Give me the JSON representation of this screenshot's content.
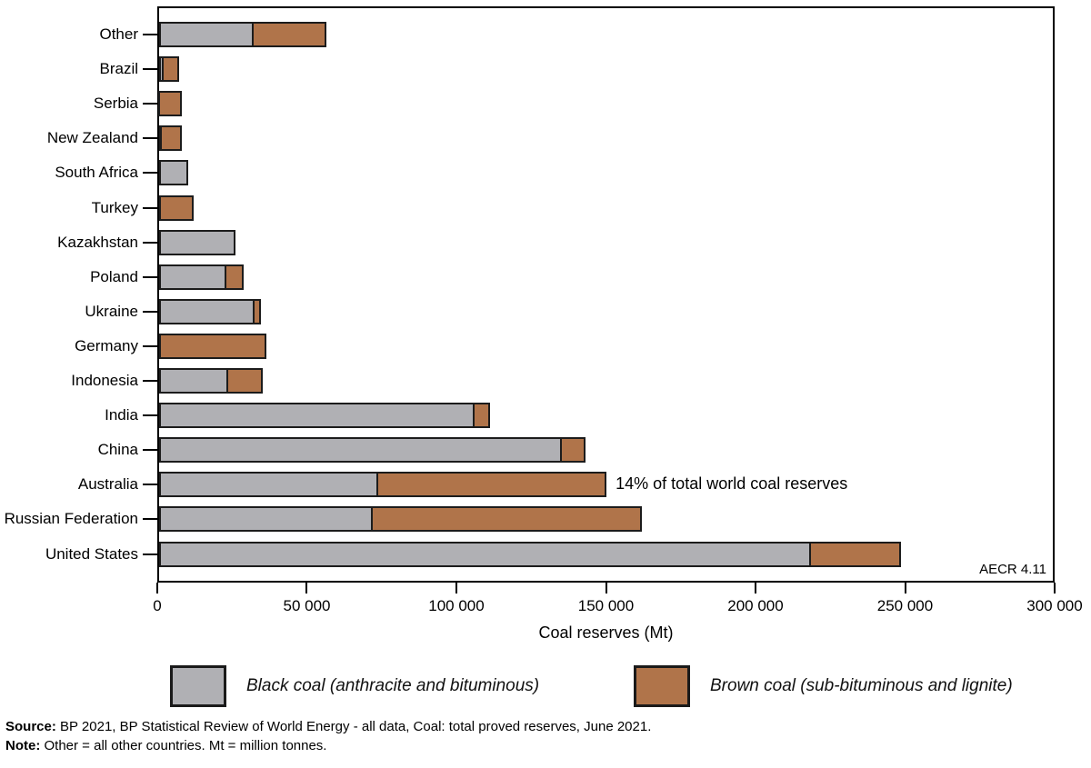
{
  "chart_data": {
    "type": "bar",
    "orientation": "horizontal",
    "stacked": true,
    "title": "",
    "xlabel": "Coal reserves (Mt)",
    "xlim": [
      0,
      300000
    ],
    "xticks": [
      0,
      50000,
      100000,
      150000,
      200000,
      250000,
      300000
    ],
    "xtick_labels": [
      "0",
      "50 000",
      "100 000",
      "150 000",
      "200 000",
      "250 000",
      "300 000"
    ],
    "categories": [
      "Other",
      "Brazil",
      "Serbia",
      "New Zealand",
      "South Africa",
      "Turkey",
      "Kazakhstan",
      "Poland",
      "Ukraine",
      "Germany",
      "Indonesia",
      "India",
      "China",
      "Australia",
      "Russian Federation",
      "United States"
    ],
    "series": [
      {
        "name": "Black coal (anthracite and bituminous)",
        "color": "#b0b0b4",
        "values": [
          31700,
          1500,
          400,
          800,
          9900,
          600,
          25600,
          22500,
          32000,
          0,
          23100,
          106000,
          135100,
          73700,
          71700,
          218900
        ]
      },
      {
        "name": "Brown coal (sub-bituminous and lignite)",
        "color": "#b0744a",
        "values": [
          24600,
          5100,
          7100,
          6800,
          0,
          11000,
          0,
          5900,
          2300,
          35900,
          11700,
          5100,
          8100,
          76500,
          90400,
          30000
        ]
      }
    ],
    "annotation": {
      "text": "14% of total world coal reserves",
      "category": "Australia"
    },
    "figure_label": "AECR 4.11",
    "legend_position": "bottom",
    "grid": false
  },
  "footnotes": {
    "source_label": "Source:",
    "source_text": " BP 2021, BP Statistical Review of World Energy - all data, Coal: total proved reserves, June 2021.",
    "note_label": "Note:",
    "note_text": " Other = all other countries. Mt = million tonnes."
  }
}
